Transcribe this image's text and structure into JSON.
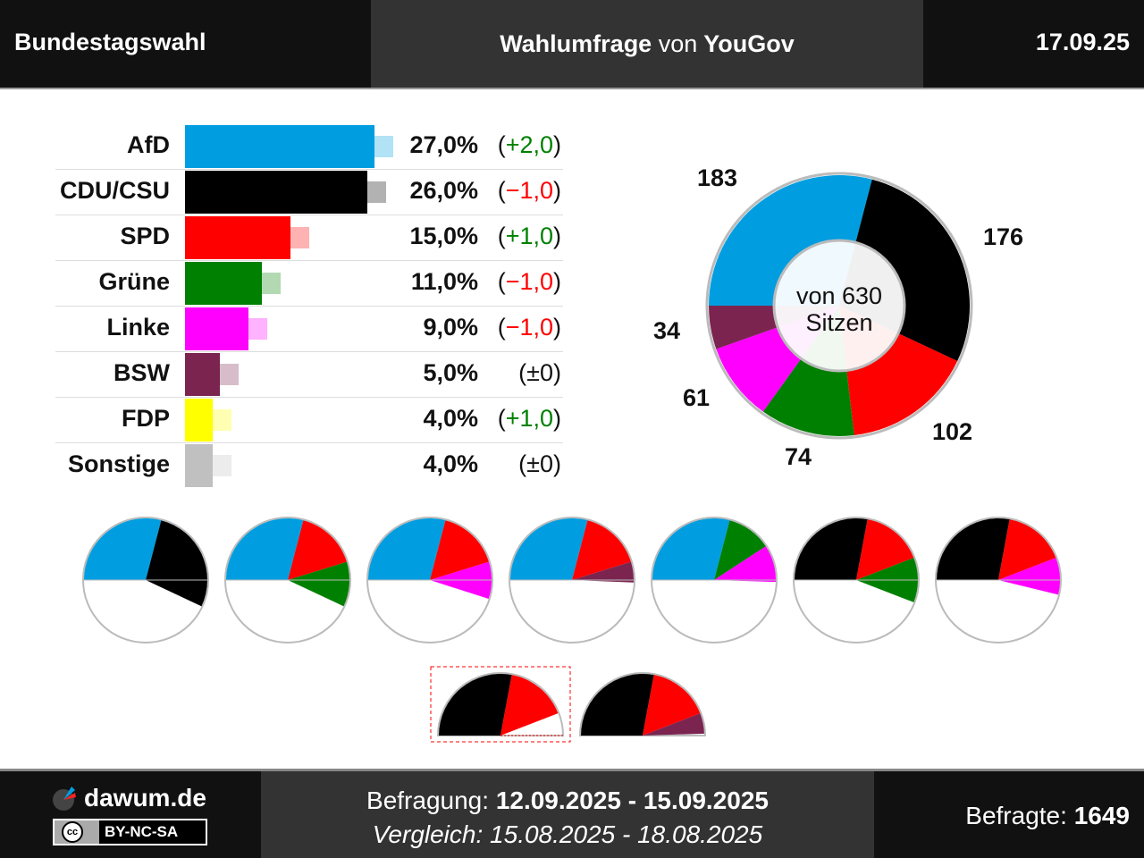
{
  "header": {
    "left": "Bundestagswahl",
    "center_prefix": "Wahlumfrage",
    "center_mid": "von",
    "center_pollster": "YouGov",
    "date": "17.09.25"
  },
  "chart_data": {
    "type": "bar",
    "categories": [
      "AfD",
      "CDU/CSU",
      "SPD",
      "Grüne",
      "Linke",
      "BSW",
      "FDP",
      "Sonstige"
    ],
    "values": [
      27.0,
      26.0,
      15.0,
      11.0,
      9.0,
      5.0,
      4.0,
      4.0
    ],
    "value_labels": [
      "27,0%",
      "26,0%",
      "15,0%",
      "11,0%",
      "9,0%",
      "5,0%",
      "4,0%",
      "4,0%"
    ],
    "changes": [
      "+2,0",
      "−1,0",
      "+1,0",
      "−1,0",
      "−1,0",
      "±0",
      "+1,0",
      "±0"
    ],
    "colors": [
      "#009ee0",
      "#000000",
      "#ff0000",
      "#008000",
      "#ff00ff",
      "#7b2450",
      "#ffff00",
      "#c0c0c0"
    ],
    "positive_color": "#008000",
    "negative_color": "#ff0000",
    "seats": {
      "parties": [
        "AfD",
        "CDU/CSU",
        "SPD",
        "Grüne",
        "Linke",
        "BSW"
      ],
      "values": [
        183,
        176,
        102,
        74,
        61,
        34
      ],
      "total": 630,
      "center_line1": "von 630",
      "center_line2": "Sitzen"
    },
    "coalitions": [
      [
        "AfD",
        "CDU/CSU"
      ],
      [
        "AfD",
        "SPD",
        "Grüne"
      ],
      [
        "AfD",
        "SPD",
        "Linke"
      ],
      [
        "AfD",
        "SPD",
        "BSW"
      ],
      [
        "AfD",
        "Grüne",
        "Linke"
      ],
      [
        "CDU/CSU",
        "SPD",
        "Grüne"
      ],
      [
        "CDU/CSU",
        "SPD",
        "Linke"
      ]
    ],
    "minor_coalitions": [
      [
        "CDU/CSU",
        "SPD"
      ],
      [
        "CDU/CSU",
        "SPD",
        "BSW"
      ]
    ],
    "highlighted_minor_coalition": 0
  },
  "footer": {
    "site": "dawum.de",
    "license": "BY-NC-SA",
    "survey_label": "Befragung:",
    "survey_period": "12.09.2025 - 15.09.2025",
    "compare_label": "Vergleich:",
    "compare_period": "15.08.2025 - 18.08.2025",
    "respondents_label": "Befragte:",
    "respondents": "1649"
  }
}
